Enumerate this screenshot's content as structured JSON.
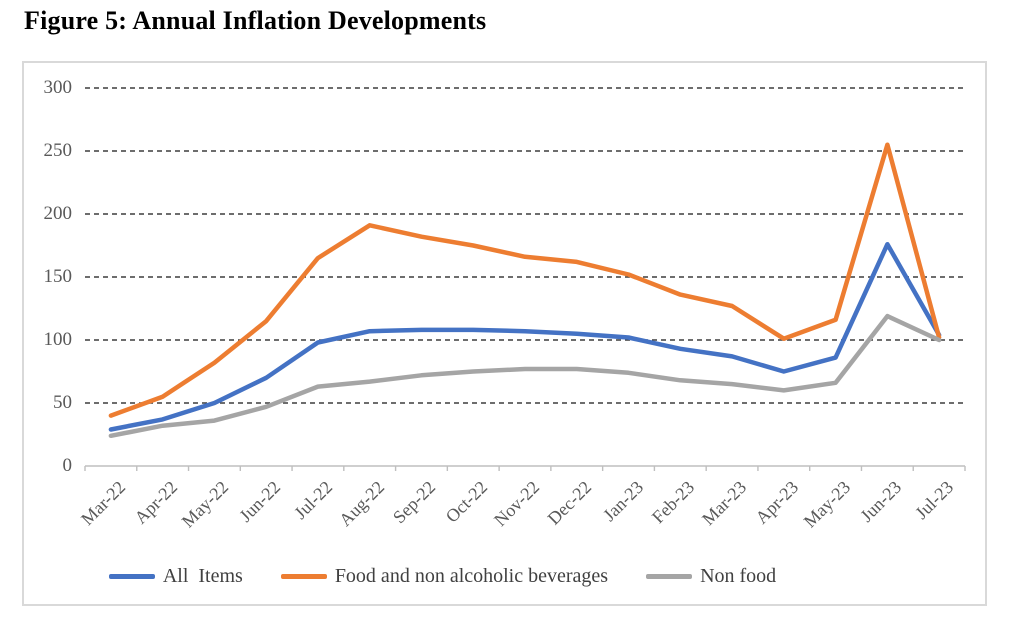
{
  "title": "Figure 5: Annual Inflation Developments",
  "chart_data": {
    "type": "line",
    "title": "Figure 5: Annual Inflation Developments",
    "xlabel": "",
    "ylabel": "",
    "ylim": [
      0,
      300
    ],
    "yticks": [
      0,
      50,
      100,
      150,
      200,
      250,
      300
    ],
    "grid": "horizontal-dashed",
    "legend_position": "bottom",
    "categories": [
      "Mar-22",
      "Apr-22",
      "May-22",
      "Jun-22",
      "Jul-22",
      "Aug-22",
      "Sep-22",
      "Oct-22",
      "Nov-22",
      "Dec-22",
      "Jan-23",
      "Feb-23",
      "Mar-23",
      "Apr-23",
      "May-23",
      "Jun-23",
      "Jul-23"
    ],
    "series": [
      {
        "name": "All  Items",
        "color": "#4472C4",
        "values": [
          29,
          37,
          50,
          70,
          98,
          107,
          108,
          108,
          107,
          105,
          102,
          93,
          87,
          75,
          86,
          176,
          104
        ]
      },
      {
        "name": "Food and non alcoholic beverages",
        "color": "#ED7D31",
        "values": [
          40,
          55,
          82,
          115,
          165,
          191,
          182,
          175,
          166,
          162,
          152,
          136,
          127,
          101,
          116,
          255,
          102
        ]
      },
      {
        "name": "Non food",
        "color": "#A5A5A5",
        "values": [
          24,
          32,
          36,
          47,
          63,
          67,
          72,
          75,
          77,
          77,
          74,
          68,
          65,
          60,
          66,
          119,
          100
        ]
      }
    ],
    "colors": {
      "gridline": "#3d3d3d",
      "axis": "#bfbfbf",
      "tick_label": "#595959",
      "border": "#d9d9d9"
    }
  }
}
